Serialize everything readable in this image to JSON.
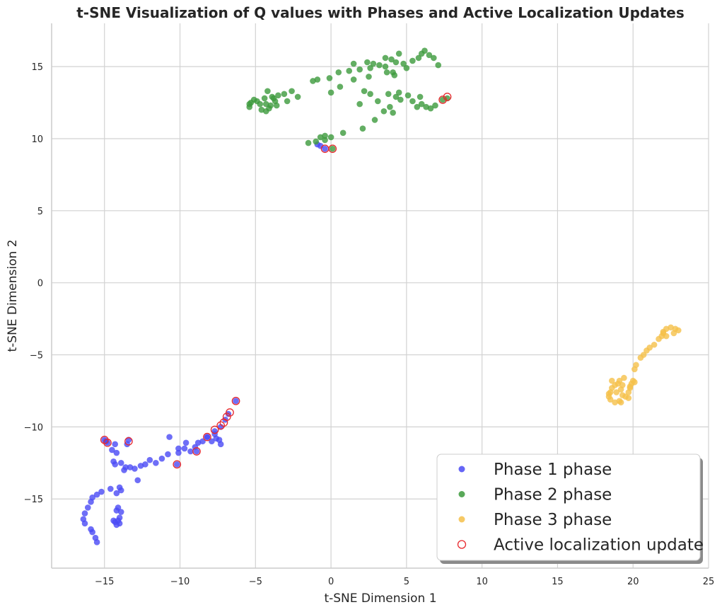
{
  "chart_data": {
    "type": "scatter",
    "title": "t-SNE Visualization of Q values with Phases and Active Localization Updates",
    "xlabel": "t-SNE Dimension 1",
    "ylabel": "t-SNE Dimension 2",
    "xlim": [
      -18.5,
      25
    ],
    "ylim": [
      -19.8,
      18
    ],
    "x_ticks": [
      -15,
      -10,
      -5,
      0,
      5,
      10,
      15,
      20,
      25
    ],
    "y_ticks": [
      -15,
      -10,
      -5,
      0,
      5,
      10,
      15
    ],
    "x_tick_labels": [
      "−15",
      "−10",
      "−5",
      "0",
      "5",
      "10",
      "15",
      "20",
      "25"
    ],
    "y_tick_labels": [
      "−15",
      "−10",
      "−5",
      "0",
      "5",
      "10",
      "15"
    ],
    "grid": true,
    "legend_position": "bottom-right",
    "series": [
      {
        "name": "Phase 1 phase",
        "color": "#4a4af5",
        "marker": "filled-circle",
        "points": [
          [
            -15.5,
            -18.0
          ],
          [
            -15.6,
            -17.7
          ],
          [
            -15.8,
            -17.3
          ],
          [
            -15.9,
            -17.1
          ],
          [
            -16.3,
            -16.7
          ],
          [
            -16.4,
            -16.4
          ],
          [
            -16.3,
            -16.0
          ],
          [
            -16.1,
            -15.6
          ],
          [
            -15.9,
            -15.2
          ],
          [
            -15.8,
            -14.9
          ],
          [
            -15.5,
            -14.7
          ],
          [
            -15.2,
            -14.5
          ],
          [
            -14.6,
            -14.3
          ],
          [
            -14.2,
            -14.6
          ],
          [
            -14.0,
            -14.2
          ],
          [
            -13.9,
            -14.4
          ],
          [
            -14.1,
            -15.6
          ],
          [
            -14.2,
            -15.8
          ],
          [
            -13.9,
            -15.9
          ],
          [
            -14.0,
            -16.3
          ],
          [
            -14.1,
            -16.5
          ],
          [
            -14.3,
            -16.6
          ],
          [
            -14.2,
            -16.8
          ],
          [
            -14.0,
            -16.7
          ],
          [
            -14.4,
            -16.5
          ],
          [
            -14.4,
            -12.4
          ],
          [
            -14.3,
            -12.6
          ],
          [
            -14.5,
            -11.6
          ],
          [
            -14.2,
            -11.8
          ],
          [
            -14.3,
            -11.2
          ],
          [
            -13.9,
            -12.5
          ],
          [
            -13.6,
            -12.8
          ],
          [
            -13.7,
            -13.0
          ],
          [
            -13.3,
            -12.8
          ],
          [
            -13.0,
            -12.9
          ],
          [
            -12.6,
            -12.7
          ],
          [
            -12.3,
            -12.6
          ],
          [
            -12.0,
            -12.3
          ],
          [
            -11.6,
            -12.5
          ],
          [
            -11.2,
            -12.2
          ],
          [
            -10.8,
            -11.9
          ],
          [
            -10.1,
            -11.8
          ],
          [
            -9.7,
            -11.5
          ],
          [
            -9.3,
            -11.7
          ],
          [
            -9.0,
            -11.4
          ],
          [
            -8.8,
            -11.1
          ],
          [
            -8.5,
            -11.0
          ],
          [
            -8.2,
            -10.7
          ],
          [
            -7.7,
            -10.5
          ],
          [
            -7.6,
            -10.8
          ],
          [
            -7.4,
            -10.9
          ],
          [
            -7.3,
            -11.2
          ],
          [
            -7.9,
            -11.0
          ],
          [
            -10.1,
            -11.5
          ],
          [
            -12.8,
            -13.7
          ],
          [
            -15.0,
            -10.9
          ],
          [
            -14.8,
            -11.1
          ],
          [
            -14.9,
            -11.0
          ],
          [
            -13.5,
            -11.2
          ],
          [
            -13.4,
            -10.9
          ],
          [
            -10.2,
            -12.6
          ],
          [
            -8.9,
            -11.7
          ],
          [
            -8.2,
            -10.7
          ],
          [
            -7.7,
            -10.3
          ],
          [
            -7.3,
            -10.0
          ],
          [
            -7.0,
            -9.5
          ],
          [
            -6.8,
            -9.1
          ],
          [
            -6.3,
            -8.2
          ],
          [
            -10.7,
            -10.7
          ],
          [
            -9.6,
            -11.1
          ],
          [
            -0.9,
            9.6
          ],
          [
            -0.7,
            9.5
          ],
          [
            -0.4,
            9.3
          ]
        ]
      },
      {
        "name": "Phase 2 phase",
        "color": "#3c9a3c",
        "marker": "filled-circle",
        "points": [
          [
            -5.4,
            12.2
          ],
          [
            -5.3,
            12.5
          ],
          [
            -5.1,
            12.7
          ],
          [
            -4.9,
            12.6
          ],
          [
            -4.7,
            12.4
          ],
          [
            -4.6,
            12.0
          ],
          [
            -4.3,
            11.9
          ],
          [
            -4.1,
            12.1
          ],
          [
            -4.3,
            12.4
          ],
          [
            -4.4,
            12.8
          ],
          [
            -4.2,
            13.3
          ],
          [
            -3.9,
            12.9
          ],
          [
            -3.7,
            12.6
          ],
          [
            -3.6,
            12.3
          ],
          [
            -3.5,
            13.0
          ],
          [
            -3.1,
            13.1
          ],
          [
            -2.9,
            12.6
          ],
          [
            -2.6,
            13.3
          ],
          [
            -2.2,
            12.9
          ],
          [
            -5.4,
            12.4
          ],
          [
            -4.0,
            12.3
          ],
          [
            -3.8,
            12.8
          ],
          [
            -1.2,
            14.0
          ],
          [
            -0.9,
            14.1
          ],
          [
            -0.1,
            14.2
          ],
          [
            0.5,
            14.6
          ],
          [
            1.2,
            14.7
          ],
          [
            1.5,
            15.2
          ],
          [
            1.9,
            14.8
          ],
          [
            2.4,
            15.3
          ],
          [
            2.6,
            14.9
          ],
          [
            2.8,
            15.2
          ],
          [
            3.2,
            15.1
          ],
          [
            3.6,
            15.0
          ],
          [
            3.6,
            15.6
          ],
          [
            4.0,
            15.5
          ],
          [
            4.3,
            15.3
          ],
          [
            4.5,
            15.9
          ],
          [
            4.8,
            15.2
          ],
          [
            5.0,
            14.9
          ],
          [
            5.4,
            15.4
          ],
          [
            5.8,
            15.6
          ],
          [
            6.0,
            15.9
          ],
          [
            6.2,
            16.1
          ],
          [
            6.5,
            15.8
          ],
          [
            6.8,
            15.6
          ],
          [
            7.1,
            15.1
          ],
          [
            3.7,
            14.6
          ],
          [
            4.2,
            14.4
          ],
          [
            4.1,
            14.6
          ],
          [
            0.0,
            13.2
          ],
          [
            0.6,
            13.6
          ],
          [
            1.5,
            14.1
          ],
          [
            2.2,
            13.3
          ],
          [
            2.6,
            13.1
          ],
          [
            1.9,
            12.4
          ],
          [
            3.1,
            12.6
          ],
          [
            3.5,
            11.9
          ],
          [
            3.9,
            12.2
          ],
          [
            4.1,
            11.8
          ],
          [
            4.3,
            12.9
          ],
          [
            4.5,
            13.2
          ],
          [
            4.6,
            12.7
          ],
          [
            5.1,
            13.0
          ],
          [
            5.4,
            12.6
          ],
          [
            5.7,
            12.2
          ],
          [
            6.0,
            12.4
          ],
          [
            6.3,
            12.2
          ],
          [
            6.6,
            12.1
          ],
          [
            6.9,
            12.3
          ],
          [
            7.4,
            12.7
          ],
          [
            7.7,
            12.8
          ],
          [
            2.9,
            11.3
          ],
          [
            2.1,
            10.7
          ],
          [
            0.0,
            10.1
          ],
          [
            -0.4,
            10.2
          ],
          [
            -0.7,
            10.1
          ],
          [
            -1.0,
            9.8
          ],
          [
            -1.5,
            9.7
          ],
          [
            0.8,
            10.4
          ],
          [
            0.1,
            9.3
          ],
          [
            -0.4,
            9.9
          ],
          [
            3.8,
            13.1
          ],
          [
            2.5,
            14.3
          ],
          [
            5.9,
            12.9
          ]
        ]
      },
      {
        "name": "Phase 3 phase",
        "color": "#f5c04a",
        "marker": "filled-circle",
        "points": [
          [
            18.4,
            -7.9
          ],
          [
            18.5,
            -7.6
          ],
          [
            18.6,
            -7.3
          ],
          [
            18.8,
            -7.1
          ],
          [
            19.0,
            -7.0
          ],
          [
            19.2,
            -7.4
          ],
          [
            19.3,
            -7.8
          ],
          [
            19.1,
            -8.2
          ],
          [
            18.8,
            -8.3
          ],
          [
            18.5,
            -8.1
          ],
          [
            18.4,
            -7.7
          ],
          [
            19.5,
            -7.9
          ],
          [
            19.7,
            -7.6
          ],
          [
            19.8,
            -7.3
          ],
          [
            19.9,
            -7.0
          ],
          [
            20.0,
            -6.8
          ],
          [
            19.8,
            -7.2
          ],
          [
            19.4,
            -6.6
          ],
          [
            19.1,
            -6.8
          ],
          [
            18.9,
            -7.6
          ],
          [
            19.2,
            -8.3
          ],
          [
            19.7,
            -8.0
          ],
          [
            20.1,
            -6.9
          ],
          [
            20.1,
            -6.0
          ],
          [
            20.2,
            -5.7
          ],
          [
            20.5,
            -5.2
          ],
          [
            20.7,
            -5.0
          ],
          [
            20.9,
            -4.7
          ],
          [
            21.1,
            -4.5
          ],
          [
            21.4,
            -4.3
          ],
          [
            21.7,
            -3.9
          ],
          [
            21.9,
            -3.7
          ],
          [
            22.0,
            -3.4
          ],
          [
            22.2,
            -3.2
          ],
          [
            22.5,
            -3.1
          ],
          [
            22.8,
            -3.2
          ],
          [
            23.0,
            -3.3
          ],
          [
            22.7,
            -3.5
          ],
          [
            22.2,
            -3.7
          ],
          [
            22.0,
            -3.5
          ],
          [
            18.6,
            -6.8
          ],
          [
            19.3,
            -7.1
          ]
        ]
      },
      {
        "name": "Active localization update",
        "color": "#e8292e",
        "marker": "hollow-circle",
        "points": [
          [
            -15.0,
            -10.9
          ],
          [
            -14.8,
            -11.1
          ],
          [
            -13.4,
            -11.0
          ],
          [
            -10.2,
            -12.6
          ],
          [
            -8.9,
            -11.7
          ],
          [
            -8.2,
            -10.7
          ],
          [
            -7.7,
            -10.2
          ],
          [
            -7.3,
            -9.9
          ],
          [
            -7.1,
            -9.7
          ],
          [
            -6.9,
            -9.3
          ],
          [
            -6.7,
            -9.0
          ],
          [
            -6.3,
            -8.2
          ],
          [
            -0.4,
            9.3
          ],
          [
            0.1,
            9.3
          ],
          [
            7.4,
            12.7
          ],
          [
            7.7,
            12.9
          ]
        ]
      }
    ]
  }
}
